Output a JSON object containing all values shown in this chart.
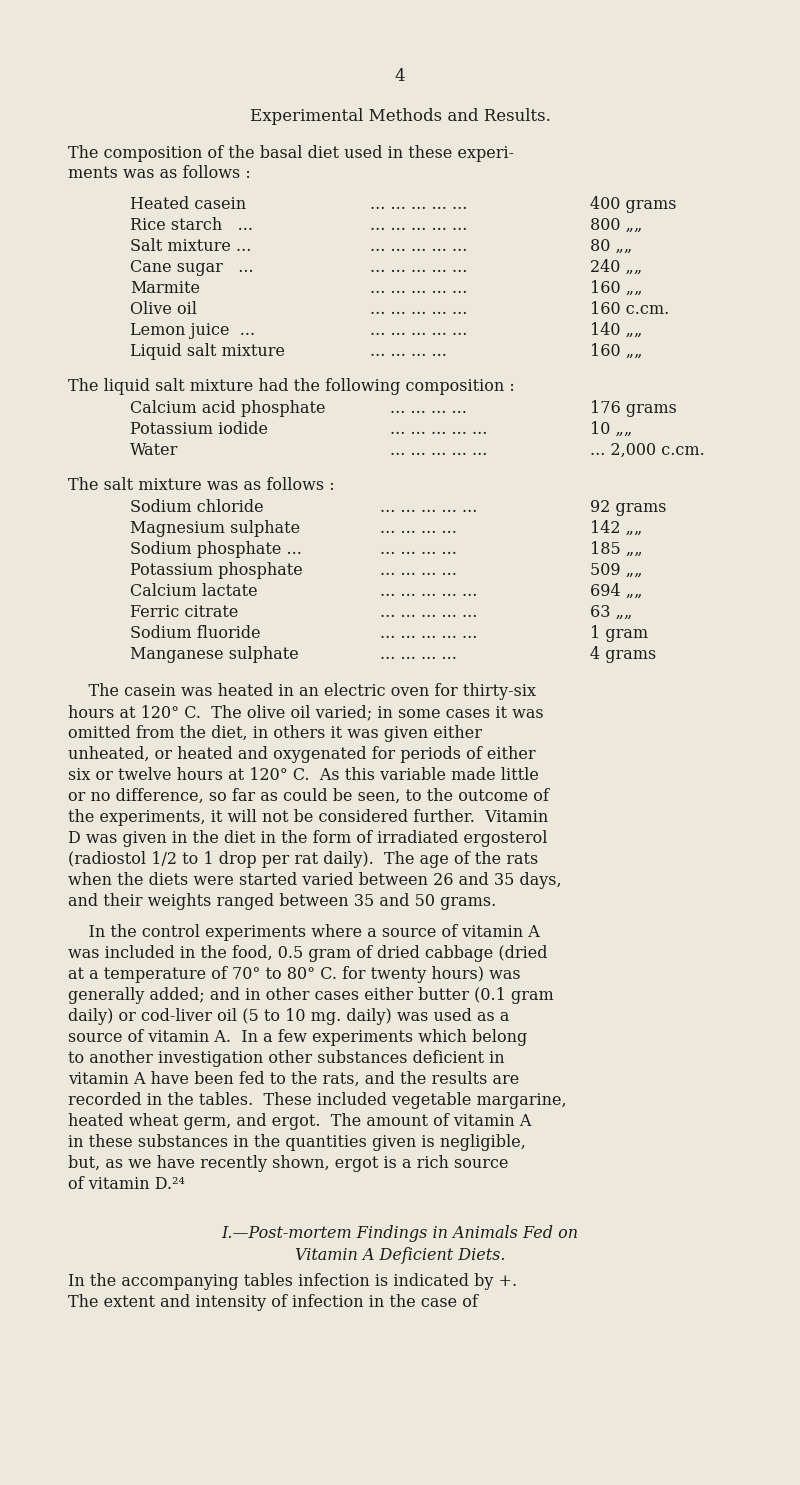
{
  "bg_color": "#ede8dc",
  "text_color": "#1c1c1c",
  "page_number": "4",
  "heading": "Experimental Methods and Results.",
  "intro_line1": "The composition of the basal diet used in these experi-",
  "intro_line2": "ments was as follows :",
  "diet_items": [
    [
      "Heated casein",
      "... ... ... ... ...",
      "400 grams"
    ],
    [
      "Rice starch   ...",
      "... ... ... ... ...",
      "800 „„"
    ],
    [
      "Salt mixture ...",
      "... ... ... ... ...",
      "80 „„"
    ],
    [
      "Cane sugar   ...",
      "... ... ... ... ...",
      "240 „„"
    ],
    [
      "Marmite",
      "... ... ... ... ...",
      "160 „„"
    ],
    [
      "Olive oil",
      "... ... ... ... ...",
      "160 c.cm."
    ],
    [
      "Lemon juice  ...",
      "... ... ... ... ...",
      "140 „„"
    ],
    [
      "Liquid salt mixture",
      "... ... ... ...",
      "160 „„"
    ]
  ],
  "liquid_intro": "The liquid salt mixture had the following composition :",
  "liquid_items": [
    [
      "Calcium acid phosphate",
      "... ... ... ...",
      "176 grams"
    ],
    [
      "Potassium iodide",
      "... ... ... ... ...",
      "10 „„"
    ],
    [
      "Water",
      "... ... ... ... ...",
      "... 2,000 c.cm."
    ]
  ],
  "salt_intro": "The salt mixture was as follows :",
  "salt_items": [
    [
      "Sodium chloride",
      "... ... ... ... ...",
      "92 grams"
    ],
    [
      "Magnesium sulphate",
      "... ... ... ...",
      "142 „„"
    ],
    [
      "Sodium phosphate ...",
      "... ... ... ...",
      "185 „„"
    ],
    [
      "Potassium phosphate",
      "... ... ... ...",
      "509 „„"
    ],
    [
      "Calcium lactate",
      "... ... ... ... ...",
      "694 „„"
    ],
    [
      "Ferric citrate",
      "... ... ... ... ...",
      "63 „„"
    ],
    [
      "Sodium fluoride",
      "... ... ... ... ...",
      "1 gram"
    ],
    [
      "Manganese sulphate",
      "... ... ... ...",
      "4 grams"
    ]
  ],
  "para1_lines": [
    "    The casein was heated in an electric oven for thirty-six",
    "hours at 120° C.  The olive oil varied; in some cases it was",
    "omitted from the diet, in others it was given either",
    "unheated, or heated and oxygenated for periods of either",
    "six or twelve hours at 120° C.  As this variable made little",
    "or no difference, so far as could be seen, to the outcome of",
    "the experiments, it will not be considered further.  Vitamin",
    "D was given in the diet in the form of irradiated ergosterol",
    "(radiostol 1/2 to 1 drop per rat daily).  The age of the rats",
    "when the diets were started varied between 26 and 35 days,",
    "and their weights ranged between 35 and 50 grams."
  ],
  "para2_lines": [
    "    In the control experiments where a source of vitamin A",
    "was included in the food, 0.5 gram of dried cabbage (dried",
    "at a temperature of 70° to 80° C. for twenty hours) was",
    "generally added; and in other cases either butter (0.1 gram",
    "daily) or cod-liver oil (5 to 10 mg. daily) was used as a",
    "source of vitamin A.  In a few experiments which belong",
    "to another investigation other substances deficient in",
    "vitamin A have been fed to the rats, and the results are",
    "recorded in the tables.  These included vegetable margarine,",
    "heated wheat germ, and ergot.  The amount of vitamin A",
    "in these substances in the quantities given is negligible,",
    "but, as we have recently shown, ergot is a rich source",
    "of vitamin D.²⁴"
  ],
  "section_line1": "I.—Post-mortem Findings in Animals Fed on",
  "section_line2": "Vitamin A Deficient Diets.",
  "last_line1": "In the accompanying tables infection is indicated by +.",
  "last_line2": "The extent and intensity of infection in the case of"
}
